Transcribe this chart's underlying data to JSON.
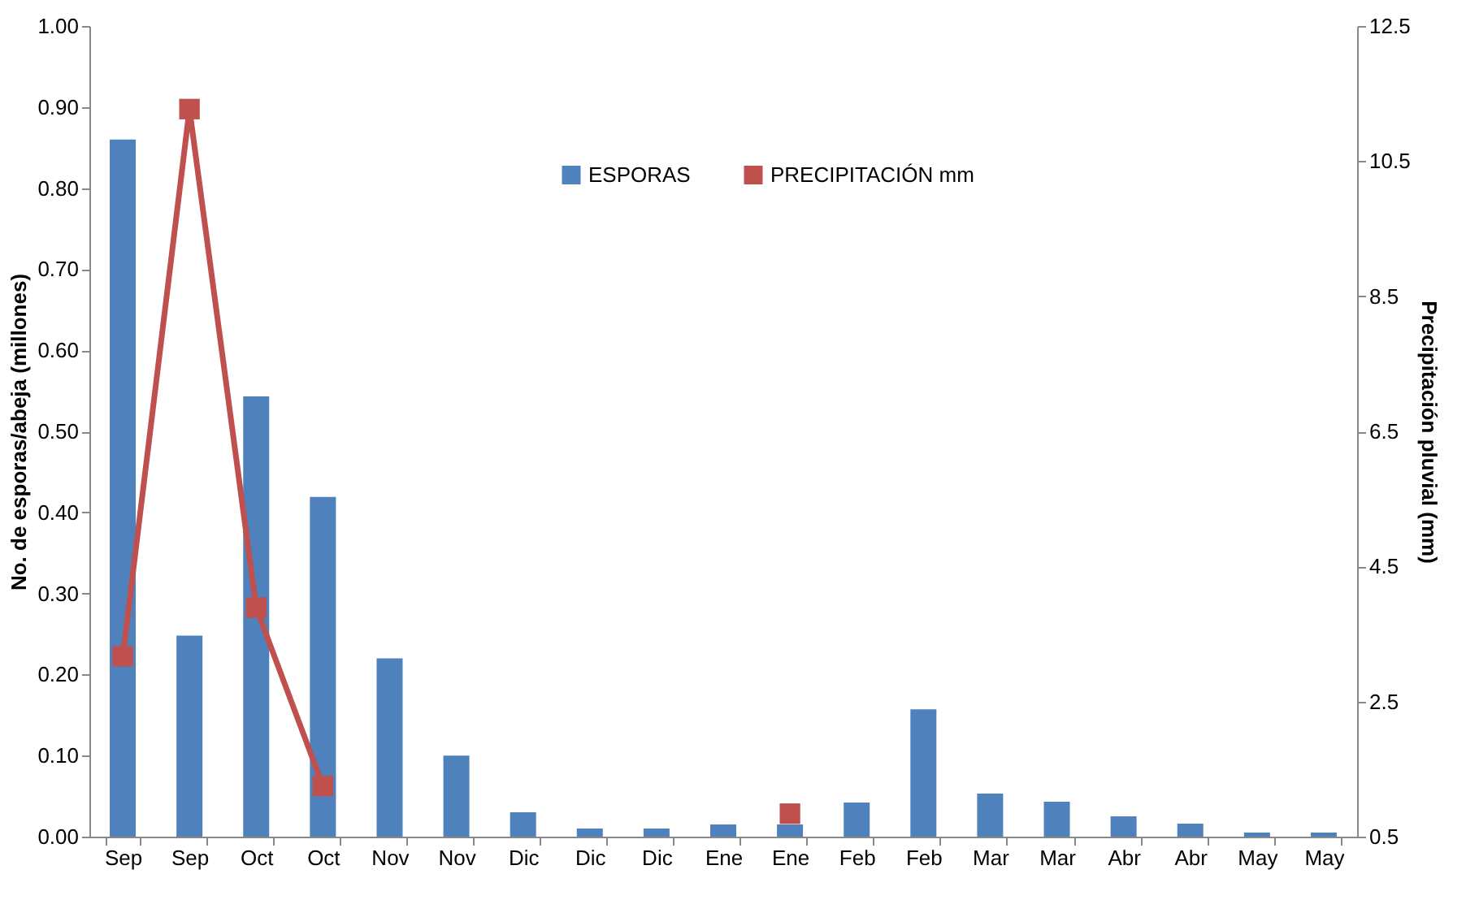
{
  "chart_data": {
    "type": "bar",
    "categories": [
      "Sep",
      "Sep",
      "Oct",
      "Oct",
      "Nov",
      "Nov",
      "Dic",
      "Dic",
      "Dic",
      "Ene",
      "Ene",
      "Feb",
      "Feb",
      "Mar",
      "Mar",
      "Abr",
      "Abr",
      "May",
      "May"
    ],
    "series": [
      {
        "name": "ESPORAS",
        "color": "#4f81bd",
        "values": [
          0.86,
          0.248,
          0.543,
          0.419,
          0.22,
          0.1,
          0.03,
          0.01,
          0.01,
          0.015,
          0.015,
          0.042,
          0.157,
          0.053,
          0.043,
          0.025,
          0.016,
          0.005,
          0.005
        ]
      },
      {
        "name": "PRECIPITACIÓN mm",
        "type": "line",
        "axis": "y2",
        "marker": "square",
        "color": "#c0504d",
        "values": [
          3.17,
          11.27,
          3.89,
          1.25,
          null,
          null,
          null,
          null,
          null,
          null,
          0.84,
          null,
          null,
          null,
          null,
          null,
          null,
          null,
          null
        ]
      }
    ],
    "ylabel": "No. de esporas/abeja (millones)",
    "y2label": "Precipitación pluvial (mm)",
    "ylim": [
      0,
      1.0
    ],
    "yticks": [
      {
        "value": 0,
        "label": "0.00"
      },
      {
        "value": 0.1,
        "label": "0.10"
      },
      {
        "value": 0.2,
        "label": "0.20"
      },
      {
        "value": 0.3,
        "label": "0.30"
      },
      {
        "value": 0.4,
        "label": "0.40"
      },
      {
        "value": 0.5,
        "label": "0.50"
      },
      {
        "value": 0.6,
        "label": "0.60"
      },
      {
        "value": 0.7,
        "label": "0.70"
      },
      {
        "value": 0.8,
        "label": "0.80"
      },
      {
        "value": 0.9,
        "label": "0.90"
      },
      {
        "value": 1.0,
        "label": "1.00"
      }
    ],
    "y2lim": [
      0.5,
      12.5
    ],
    "y2ticks": [
      {
        "value": 0.5,
        "label": "0.5"
      },
      {
        "value": 2.5,
        "label": "2.5"
      },
      {
        "value": 4.5,
        "label": "4.5"
      },
      {
        "value": 6.5,
        "label": "6.5"
      },
      {
        "value": 8.5,
        "label": "8.5"
      },
      {
        "value": 10.5,
        "label": "10.5"
      },
      {
        "value": 12.5,
        "label": "12.5"
      }
    ],
    "legend": "top",
    "grid": false
  }
}
